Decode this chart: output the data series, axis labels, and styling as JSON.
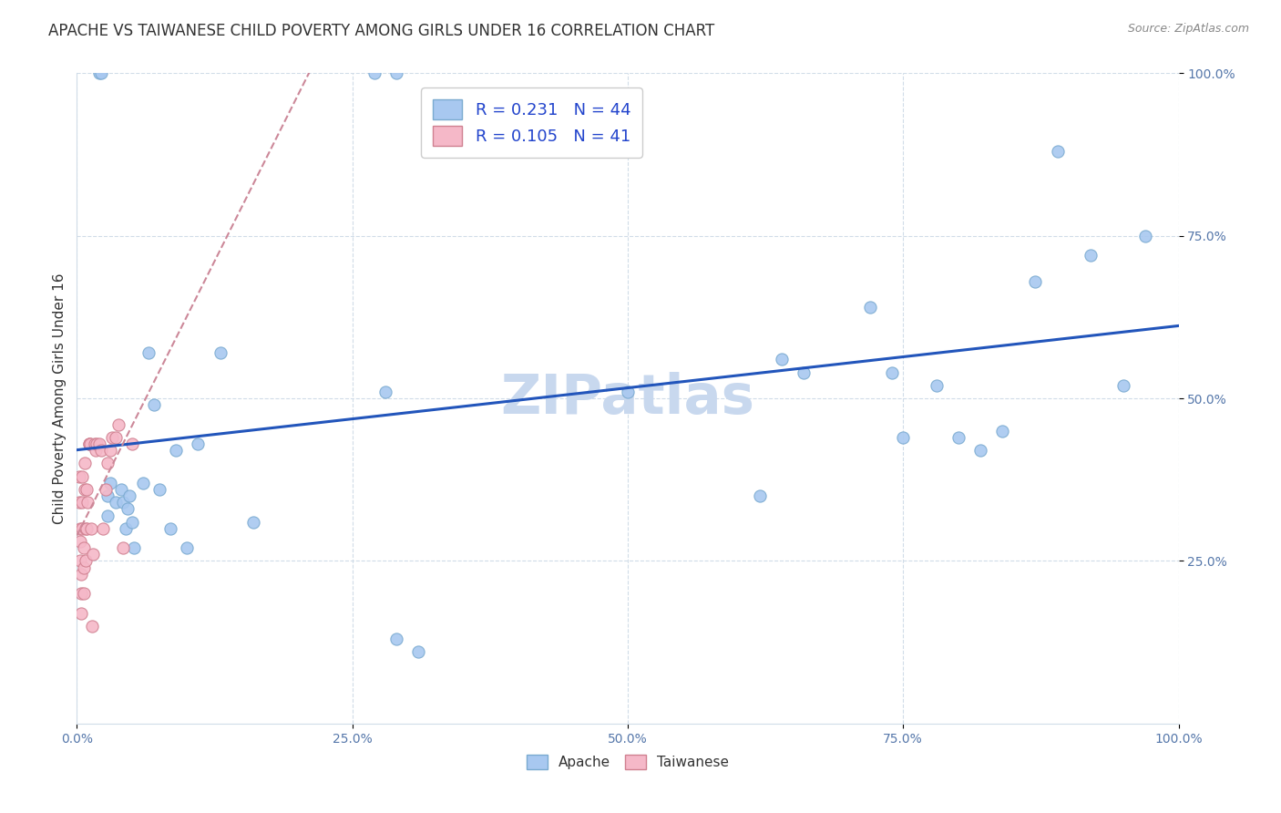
{
  "title": "APACHE VS TAIWANESE CHILD POVERTY AMONG GIRLS UNDER 16 CORRELATION CHART",
  "source": "Source: ZipAtlas.com",
  "ylabel": "Child Poverty Among Girls Under 16",
  "xlim": [
    0,
    1.0
  ],
  "ylim": [
    0,
    1.0
  ],
  "xticks": [
    0.0,
    0.25,
    0.5,
    0.75,
    1.0
  ],
  "yticks": [
    0.25,
    0.5,
    0.75,
    1.0
  ],
  "xticklabels": [
    "0.0%",
    "25.0%",
    "50.0%",
    "75.0%",
    "100.0%"
  ],
  "yticklabels": [
    "25.0%",
    "50.0%",
    "75.0%",
    "100.0%"
  ],
  "apache_color": "#a8c8f0",
  "apache_edge_color": "#7aaad0",
  "taiwanese_color": "#f5b8c8",
  "taiwanese_edge_color": "#d08090",
  "trendline_apache_color": "#2255bb",
  "trendline_taiwanese_color": "#cc8899",
  "watermark_color": "#c8d8ee",
  "R_apache": 0.231,
  "N_apache": 44,
  "R_taiwanese": 0.105,
  "N_taiwanese": 41,
  "apache_x": [
    0.02,
    0.022,
    0.028,
    0.028,
    0.03,
    0.035,
    0.04,
    0.042,
    0.044,
    0.046,
    0.048,
    0.05,
    0.052,
    0.06,
    0.065,
    0.07,
    0.075,
    0.085,
    0.09,
    0.1,
    0.11,
    0.13,
    0.16,
    0.27,
    0.29,
    0.29,
    0.31,
    0.28,
    0.5,
    0.62,
    0.64,
    0.66,
    0.72,
    0.74,
    0.75,
    0.78,
    0.8,
    0.82,
    0.84,
    0.87,
    0.89,
    0.92,
    0.95,
    0.97
  ],
  "apache_y": [
    1.0,
    1.0,
    0.35,
    0.32,
    0.37,
    0.34,
    0.36,
    0.34,
    0.3,
    0.33,
    0.35,
    0.31,
    0.27,
    0.37,
    0.57,
    0.49,
    0.36,
    0.3,
    0.42,
    0.27,
    0.43,
    0.57,
    0.31,
    1.0,
    1.0,
    0.13,
    0.11,
    0.51,
    0.51,
    0.35,
    0.56,
    0.54,
    0.64,
    0.54,
    0.44,
    0.52,
    0.44,
    0.42,
    0.45,
    0.68,
    0.88,
    0.72,
    0.52,
    0.75
  ],
  "taiwanese_x": [
    0.002,
    0.002,
    0.003,
    0.003,
    0.003,
    0.004,
    0.004,
    0.004,
    0.005,
    0.005,
    0.005,
    0.006,
    0.006,
    0.006,
    0.007,
    0.007,
    0.008,
    0.008,
    0.009,
    0.009,
    0.01,
    0.011,
    0.011,
    0.012,
    0.013,
    0.014,
    0.015,
    0.016,
    0.017,
    0.018,
    0.02,
    0.022,
    0.024,
    0.026,
    0.028,
    0.03,
    0.032,
    0.035,
    0.038,
    0.042,
    0.05
  ],
  "taiwanese_y": [
    0.38,
    0.34,
    0.3,
    0.28,
    0.25,
    0.23,
    0.2,
    0.17,
    0.38,
    0.34,
    0.3,
    0.27,
    0.24,
    0.2,
    0.4,
    0.36,
    0.3,
    0.25,
    0.36,
    0.3,
    0.34,
    0.43,
    0.43,
    0.43,
    0.3,
    0.15,
    0.26,
    0.43,
    0.42,
    0.43,
    0.43,
    0.42,
    0.3,
    0.36,
    0.4,
    0.42,
    0.44,
    0.44,
    0.46,
    0.27,
    0.43
  ],
  "marker_size": 90,
  "grid_color": "#d0dce8",
  "background_color": "#ffffff",
  "title_fontsize": 12,
  "axis_label_fontsize": 11,
  "tick_fontsize": 10,
  "legend_fontsize": 13,
  "legend_text_color": "#2244cc"
}
